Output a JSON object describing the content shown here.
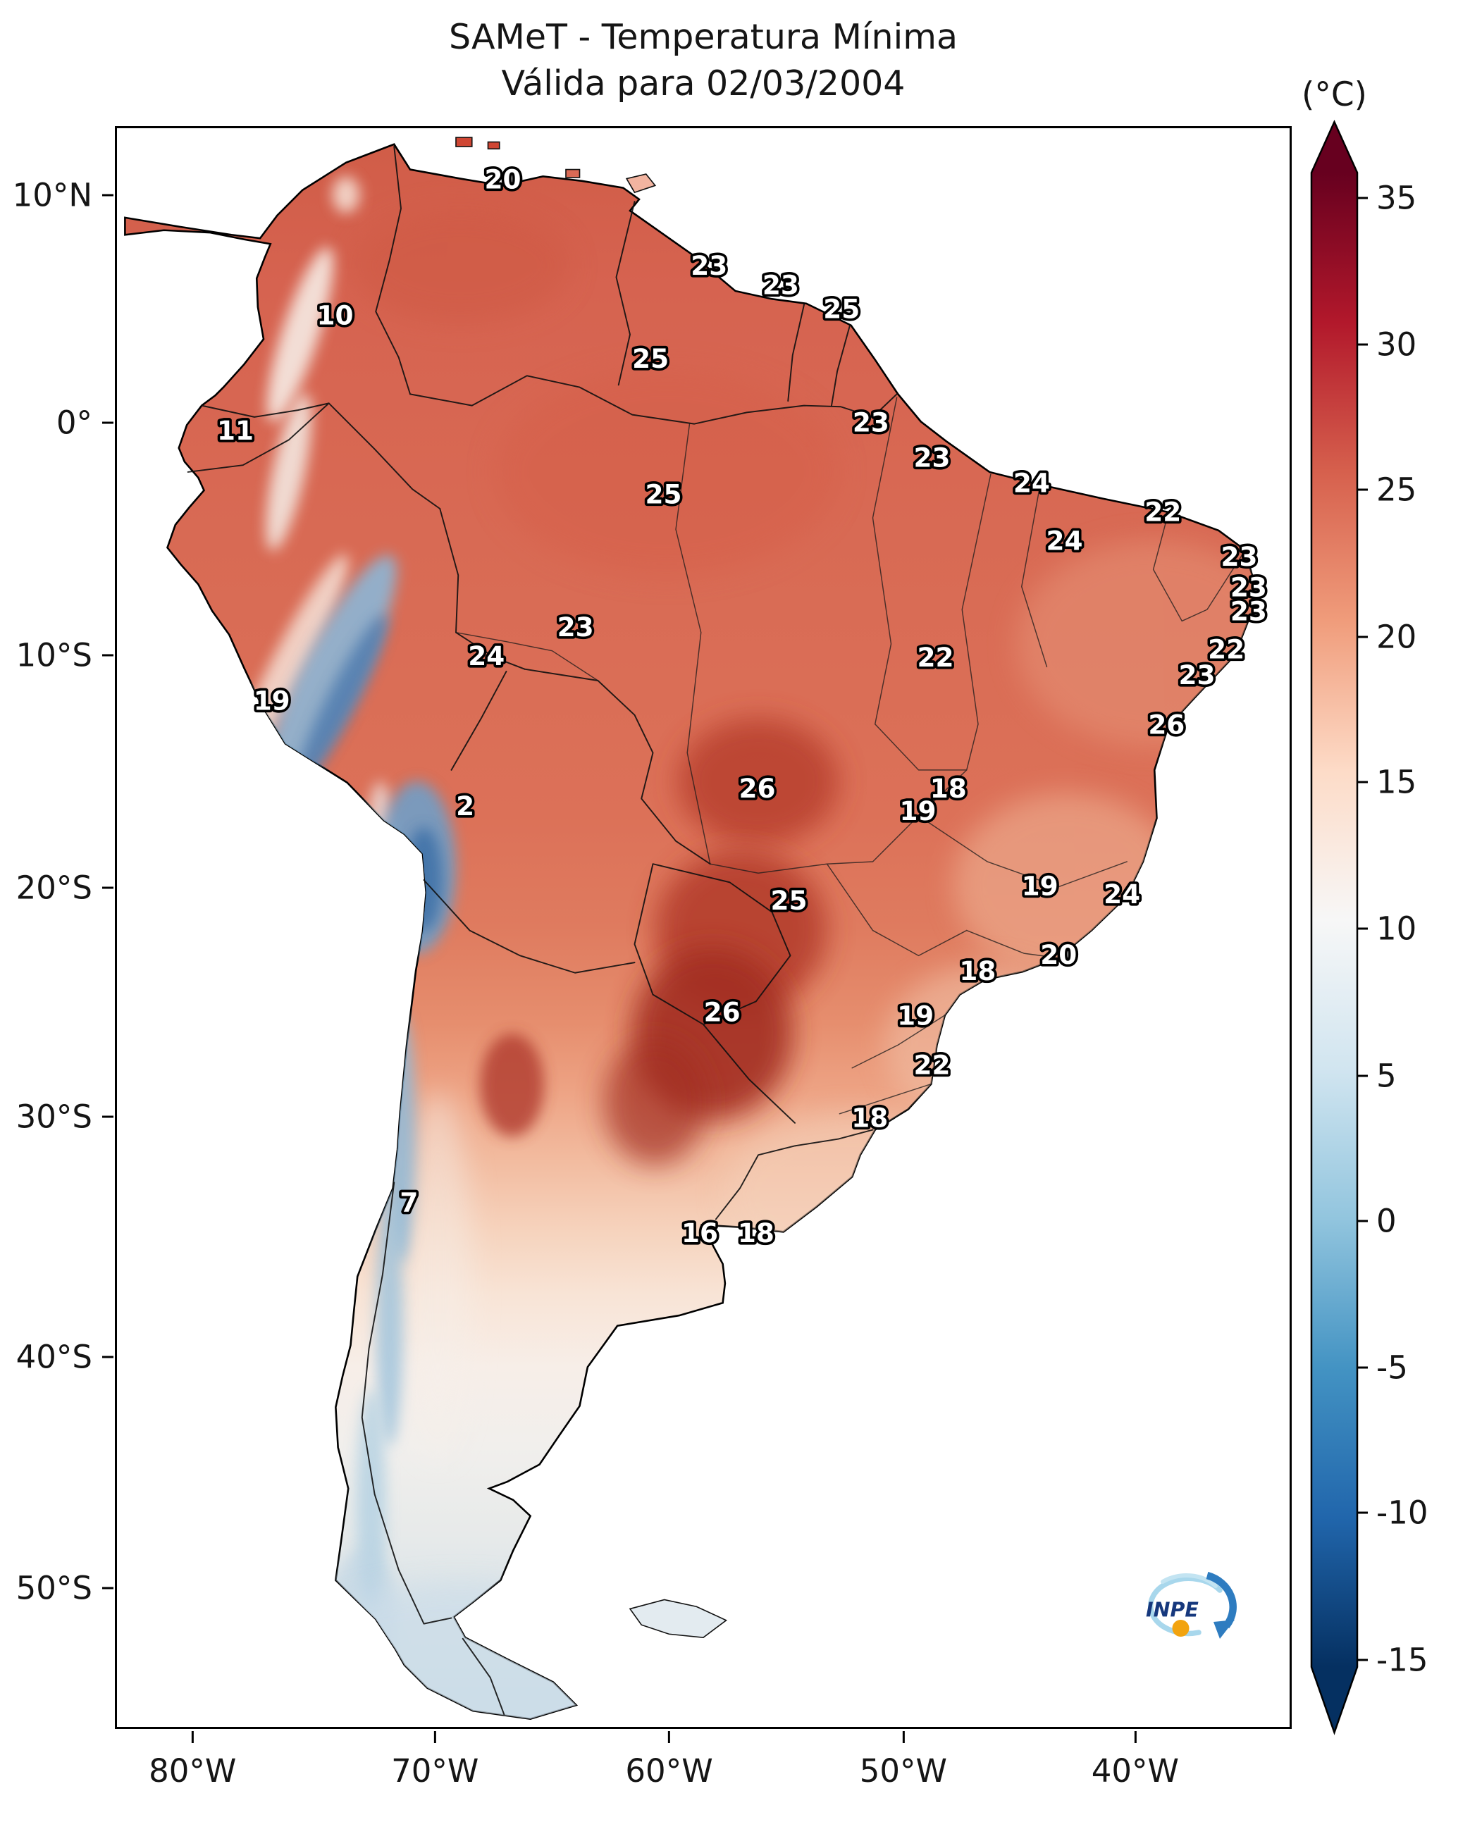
{
  "title": {
    "line1": "SAMeT - Temperatura Mínima",
    "line2": "Válida para 02/03/2004"
  },
  "colorbar": {
    "unit": "(°C)",
    "gradient_stops": [
      "#67001f",
      "#b2182b",
      "#d6604d",
      "#f09c7b",
      "#fddbc7",
      "#f7f7f7",
      "#d1e5f0",
      "#92c5de",
      "#4393c3",
      "#2166ac",
      "#053061"
    ],
    "ticks": [
      {
        "label": "35",
        "pct": 4.8
      },
      {
        "label": "30",
        "pct": 13.9
      },
      {
        "label": "25",
        "pct": 22.9
      },
      {
        "label": "20",
        "pct": 32.0
      },
      {
        "label": "15",
        "pct": 41.0
      },
      {
        "label": "10",
        "pct": 50.1
      },
      {
        "label": "5",
        "pct": 59.2
      },
      {
        "label": "0",
        "pct": 68.2
      },
      {
        "label": "-5",
        "pct": 77.3
      },
      {
        "label": "-10",
        "pct": 86.3
      },
      {
        "label": "-15",
        "pct": 95.4
      }
    ]
  },
  "axes": {
    "lat_ticks": [
      {
        "label": "10°N",
        "pct": 4.3
      },
      {
        "label": "0°",
        "pct": 18.5
      },
      {
        "label": "10°S",
        "pct": 33.0
      },
      {
        "label": "20°S",
        "pct": 47.5
      },
      {
        "label": "30°S",
        "pct": 61.8
      },
      {
        "label": "40°S",
        "pct": 76.8
      },
      {
        "label": "50°S",
        "pct": 91.2
      }
    ],
    "lon_ticks": [
      {
        "label": "80°W",
        "pct": 6.6
      },
      {
        "label": "70°W",
        "pct": 27.2
      },
      {
        "label": "60°W",
        "pct": 47.1
      },
      {
        "label": "50°W",
        "pct": 67.0
      },
      {
        "label": "40°W",
        "pct": 86.7
      }
    ]
  },
  "logo": {
    "label": "INPE"
  },
  "chart_data": {
    "type": "heatmap",
    "title": "SAMeT - Temperatura Mínima",
    "subtitle": "Válida para 02/03/2004",
    "units": "°C",
    "colormap": "RdBu_r (dark red = warm, dark blue = cold)",
    "colorbar_range": [
      -15,
      35
    ],
    "colorbar_ticks": [
      35,
      30,
      25,
      20,
      15,
      10,
      5,
      0,
      -5,
      -10,
      -15
    ],
    "lat_ticks": [
      "10°N",
      "0°",
      "10°S",
      "20°S",
      "30°S",
      "40°S",
      "50°S"
    ],
    "lon_ticks": [
      "80°W",
      "70°W",
      "60°W",
      "50°W",
      "40°W"
    ],
    "point_labels": [
      {
        "value": "20",
        "x_pct": 32.9,
        "y_pct": 3.2
      },
      {
        "value": "23",
        "x_pct": 50.5,
        "y_pct": 8.6
      },
      {
        "value": "23",
        "x_pct": 56.6,
        "y_pct": 9.8
      },
      {
        "value": "25",
        "x_pct": 61.8,
        "y_pct": 11.3
      },
      {
        "value": "10",
        "x_pct": 18.6,
        "y_pct": 11.7
      },
      {
        "value": "25",
        "x_pct": 45.5,
        "y_pct": 14.4
      },
      {
        "value": "23",
        "x_pct": 64.3,
        "y_pct": 18.4
      },
      {
        "value": "11",
        "x_pct": 10.1,
        "y_pct": 18.9
      },
      {
        "value": "23",
        "x_pct": 69.5,
        "y_pct": 20.6
      },
      {
        "value": "24",
        "x_pct": 78.0,
        "y_pct": 22.2
      },
      {
        "value": "25",
        "x_pct": 46.6,
        "y_pct": 22.9
      },
      {
        "value": "22",
        "x_pct": 89.2,
        "y_pct": 24.0
      },
      {
        "value": "24",
        "x_pct": 80.8,
        "y_pct": 25.8
      },
      {
        "value": "23",
        "x_pct": 95.7,
        "y_pct": 26.8
      },
      {
        "value": "23",
        "x_pct": 96.5,
        "y_pct": 28.7
      },
      {
        "value": "23",
        "x_pct": 96.5,
        "y_pct": 30.2
      },
      {
        "value": "23",
        "x_pct": 39.1,
        "y_pct": 31.2
      },
      {
        "value": "24",
        "x_pct": 31.5,
        "y_pct": 33.0
      },
      {
        "value": "22",
        "x_pct": 69.8,
        "y_pct": 33.1
      },
      {
        "value": "22",
        "x_pct": 94.6,
        "y_pct": 32.6
      },
      {
        "value": "23",
        "x_pct": 92.1,
        "y_pct": 34.2
      },
      {
        "value": "19",
        "x_pct": 13.2,
        "y_pct": 35.8
      },
      {
        "value": "26",
        "x_pct": 89.5,
        "y_pct": 37.3
      },
      {
        "value": "2",
        "x_pct": 29.7,
        "y_pct": 42.4
      },
      {
        "value": "26",
        "x_pct": 54.6,
        "y_pct": 41.3
      },
      {
        "value": "18",
        "x_pct": 70.9,
        "y_pct": 41.3
      },
      {
        "value": "19",
        "x_pct": 68.3,
        "y_pct": 42.7
      },
      {
        "value": "25",
        "x_pct": 57.3,
        "y_pct": 48.3
      },
      {
        "value": "19",
        "x_pct": 78.7,
        "y_pct": 47.4
      },
      {
        "value": "24",
        "x_pct": 85.7,
        "y_pct": 47.9
      },
      {
        "value": "20",
        "x_pct": 80.3,
        "y_pct": 51.7
      },
      {
        "value": "18",
        "x_pct": 73.4,
        "y_pct": 52.7
      },
      {
        "value": "26",
        "x_pct": 51.6,
        "y_pct": 55.3
      },
      {
        "value": "19",
        "x_pct": 68.1,
        "y_pct": 55.5
      },
      {
        "value": "22",
        "x_pct": 69.5,
        "y_pct": 58.6
      },
      {
        "value": "18",
        "x_pct": 64.2,
        "y_pct": 61.9
      },
      {
        "value": "7",
        "x_pct": 24.9,
        "y_pct": 67.2
      },
      {
        "value": "16",
        "x_pct": 49.7,
        "y_pct": 69.1
      },
      {
        "value": "18",
        "x_pct": 54.5,
        "y_pct": 69.1
      }
    ]
  }
}
